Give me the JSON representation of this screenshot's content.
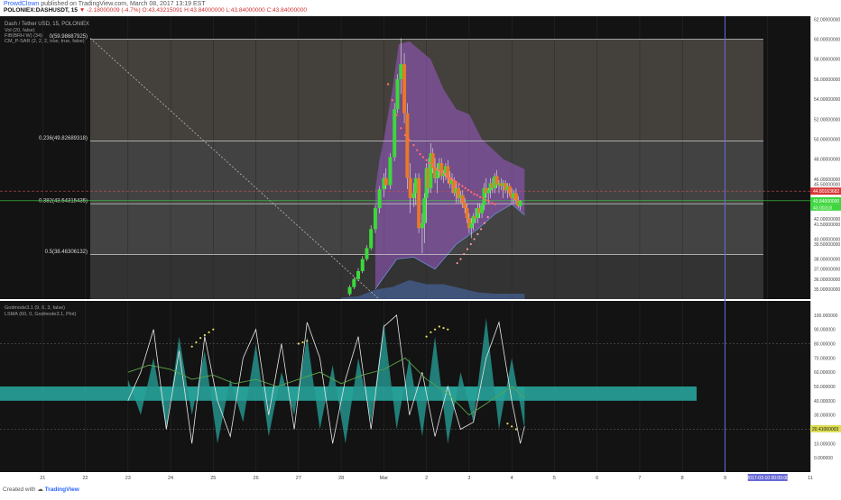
{
  "header": {
    "author": "ProwdClown",
    "published": "published on TradingView.com, March 08, 2017 13:19 EST",
    "symbol": "POLONIEX:DASHUSDT, 15",
    "change": "-2.18000009 (-4.7%)",
    "ohlc": "O:43.43215091  H:43.84000000  L:43.84000000  C:43.84000000"
  },
  "footer": {
    "created_with": "Created with",
    "brand": "TradingView"
  },
  "colors": {
    "chart_bg": "#131313",
    "candle_up": "#3cd83c",
    "candle_down": "#e8782a",
    "ichimoku_cloud": "#9b59c6",
    "sar": "#ff6b6b",
    "fib_line": "#d0d0d0",
    "price_line": "#3ed63e",
    "last_price_label": "#d93838",
    "osc_fill": "#27a39b",
    "date_axis": "#6a6ad8"
  },
  "chart_data": [
    {
      "type": "candlestick",
      "title": "Dash / Tether USD, 15, POLONIEX",
      "indicators": [
        "Vol (20, false)",
        "FIB(BRH W) (34)",
        "CM_P-SAR (2, 2, 2, true, true, false)"
      ],
      "x_ticks": [
        "21",
        "22",
        "23",
        "24",
        "25",
        "26",
        "27",
        "28",
        "Mar",
        "2",
        "3",
        "4",
        "5",
        "6",
        "7",
        "8",
        "9",
        "2017-03-10 00:00:00",
        "11"
      ],
      "y_ticks": [
        "62.00000000",
        "60.00000000",
        "58.00000000",
        "56.00000000",
        "54.00000000",
        "52.00000000",
        "50.00000000",
        "48.00000000",
        "46.00000000",
        "45.50000000",
        "44.00000000",
        "43.84000000",
        "42.00000000",
        "41.50000000",
        "40.00000000",
        "39.50000000",
        "38.00000000",
        "37.00000000",
        "36.00000000",
        "35.00000000"
      ],
      "ylim": [
        34.0,
        62.3
      ],
      "fib_levels": [
        {
          "label": "0(59.98687925)",
          "value": 59.99
        },
        {
          "label": "0.236(49.82689318)",
          "value": 49.83
        },
        {
          "label": "0.382(43.54315435)",
          "value": 43.54
        },
        {
          "label": "0.5(38.46306132)",
          "value": 38.46
        }
      ],
      "last_price": "44.80163682",
      "current_price": "43.84000000",
      "secondary_price": "43.00318",
      "current_time": "2017-03-10 00:00:00",
      "candles": [
        [
          8.2,
          34.5,
          35.4,
          34.3,
          35.2
        ],
        [
          8.3,
          35.2,
          36.2,
          35.0,
          36.0
        ],
        [
          8.4,
          36.0,
          37.1,
          35.8,
          36.8
        ],
        [
          8.5,
          36.8,
          38.3,
          36.6,
          38.0
        ],
        [
          8.6,
          38.0,
          39.4,
          37.8,
          39.1
        ],
        [
          8.7,
          39.1,
          41.4,
          38.9,
          41.0
        ],
        [
          8.8,
          41.0,
          43.4,
          40.6,
          43.1
        ],
        [
          8.9,
          43.1,
          45.3,
          42.6,
          45.0
        ],
        [
          9.0,
          45.0,
          46.6,
          44.2,
          46.1
        ],
        [
          9.05,
          46.1,
          47.1,
          45.0,
          45.4
        ],
        [
          9.15,
          45.4,
          48.6,
          45.0,
          48.2
        ],
        [
          9.25,
          48.2,
          53.6,
          47.8,
          53.0
        ],
        [
          9.32,
          53.0,
          56.5,
          52.6,
          56.0
        ],
        [
          9.4,
          56.0,
          60.1,
          54.5,
          57.5
        ],
        [
          9.48,
          57.5,
          58.6,
          51.6,
          52.6
        ],
        [
          9.55,
          52.6,
          53.6,
          45.0,
          46.1
        ],
        [
          9.62,
          46.1,
          47.6,
          42.6,
          44.1
        ],
        [
          9.7,
          44.1,
          45.6,
          43.2,
          44.6
        ],
        [
          9.75,
          44.6,
          46.6,
          43.4,
          46.1
        ],
        [
          9.82,
          46.1,
          46.6,
          40.6,
          41.1
        ],
        [
          9.9,
          41.1,
          42.6,
          38.6,
          41.6
        ],
        [
          9.95,
          41.6,
          44.6,
          39.6,
          44.1
        ],
        [
          10.0,
          44.1,
          47.6,
          41.6,
          47.1
        ],
        [
          10.05,
          47.1,
          48.1,
          44.6,
          45.1
        ],
        [
          10.1,
          45.1,
          49.6,
          44.6,
          48.6
        ],
        [
          10.15,
          48.6,
          49.1,
          46.6,
          47.1
        ],
        [
          10.2,
          47.1,
          48.1,
          45.6,
          46.1
        ],
        [
          10.25,
          46.1,
          47.6,
          44.6,
          46.9
        ],
        [
          10.3,
          46.9,
          48.1,
          46.1,
          47.6
        ],
        [
          10.35,
          47.6,
          48.1,
          45.9,
          46.3
        ],
        [
          10.4,
          46.3,
          46.9,
          45.6,
          46.6
        ],
        [
          10.45,
          46.6,
          47.6,
          45.9,
          47.3
        ],
        [
          10.5,
          47.3,
          47.9,
          45.6,
          46.1
        ],
        [
          10.55,
          46.1,
          46.8,
          45.1,
          45.5
        ],
        [
          10.6,
          45.5,
          46.6,
          44.6,
          45.9
        ],
        [
          10.65,
          45.9,
          46.2,
          44.3,
          44.6
        ],
        [
          10.7,
          44.6,
          45.6,
          43.6,
          45.1
        ],
        [
          10.75,
          45.1,
          45.6,
          43.6,
          44.1
        ],
        [
          10.8,
          44.1,
          44.8,
          43.6,
          44.4
        ],
        [
          10.85,
          44.4,
          44.9,
          43.1,
          43.6
        ],
        [
          10.9,
          43.6,
          44.1,
          42.6,
          43.1
        ],
        [
          10.95,
          43.1,
          43.6,
          41.6,
          42.1
        ],
        [
          11.0,
          42.1,
          42.6,
          40.6,
          41.1
        ],
        [
          11.05,
          41.1,
          42.1,
          40.1,
          41.6
        ],
        [
          11.1,
          41.6,
          42.6,
          40.9,
          42.3
        ],
        [
          11.15,
          42.3,
          43.1,
          41.6,
          42.1
        ],
        [
          11.2,
          42.1,
          43.6,
          41.6,
          43.1
        ],
        [
          11.25,
          43.1,
          43.6,
          42.1,
          42.6
        ],
        [
          11.3,
          42.6,
          43.6,
          42.1,
          43.4
        ],
        [
          11.35,
          43.4,
          45.6,
          42.9,
          45.1
        ],
        [
          11.4,
          45.1,
          46.1,
          44.1,
          44.6
        ],
        [
          11.45,
          44.6,
          45.1,
          43.6,
          44.9
        ],
        [
          11.5,
          44.9,
          46.1,
          44.1,
          45.6
        ],
        [
          11.55,
          45.6,
          46.1,
          44.6,
          45.1
        ],
        [
          11.6,
          45.1,
          46.6,
          44.6,
          46.3
        ],
        [
          11.65,
          46.3,
          46.9,
          45.1,
          45.4
        ],
        [
          11.7,
          45.4,
          45.9,
          44.6,
          45.6
        ],
        [
          11.75,
          45.6,
          46.1,
          44.9,
          45.3
        ],
        [
          11.8,
          45.3,
          45.9,
          44.1,
          45.6
        ],
        [
          11.85,
          45.6,
          45.9,
          44.6,
          44.9
        ],
        [
          11.9,
          44.9,
          45.6,
          44.1,
          45.3
        ],
        [
          11.95,
          45.3,
          45.6,
          44.3,
          44.6
        ],
        [
          12.0,
          44.6,
          45.1,
          43.6,
          44.1
        ],
        [
          12.05,
          44.1,
          44.9,
          43.6,
          44.6
        ],
        [
          12.1,
          44.6,
          45.1,
          43.6,
          43.9
        ],
        [
          12.15,
          43.9,
          44.3,
          43.1,
          43.3
        ],
        [
          12.2,
          43.3,
          43.9,
          42.9,
          43.84
        ]
      ],
      "sar_points": [
        [
          9.1,
          55.5
        ],
        [
          9.2,
          53.9
        ],
        [
          9.3,
          52.4
        ],
        [
          9.4,
          51.1
        ],
        [
          9.5,
          50.4
        ],
        [
          9.6,
          49.9
        ],
        [
          9.7,
          49.4
        ],
        [
          9.78,
          48.9
        ],
        [
          9.85,
          48.5
        ],
        [
          9.92,
          48.2
        ],
        [
          10.0,
          47.9
        ],
        [
          10.07,
          47.6
        ],
        [
          10.14,
          47.4
        ],
        [
          10.21,
          47.1
        ],
        [
          10.28,
          46.9
        ],
        [
          10.35,
          46.7
        ],
        [
          10.42,
          46.5
        ],
        [
          10.49,
          46.3
        ],
        [
          10.56,
          46.1
        ],
        [
          10.63,
          45.9
        ],
        [
          10.7,
          45.7
        ],
        [
          10.77,
          45.5
        ],
        [
          10.84,
          45.3
        ],
        [
          10.91,
          45.1
        ],
        [
          10.98,
          44.9
        ],
        [
          11.05,
          44.7
        ],
        [
          11.12,
          44.5
        ],
        [
          11.19,
          44.4
        ],
        [
          11.26,
          44.2
        ],
        [
          11.33,
          44.1
        ],
        [
          11.4,
          43.9
        ],
        [
          11.47,
          43.8
        ],
        [
          11.54,
          43.6
        ],
        [
          11.61,
          43.5
        ]
      ],
      "sar_low_points": [
        [
          10.72,
          37.6
        ],
        [
          10.8,
          38.0
        ],
        [
          10.88,
          38.5
        ],
        [
          10.96,
          39.0
        ],
        [
          11.04,
          39.5
        ],
        [
          11.12,
          40.0
        ],
        [
          11.2,
          40.5
        ],
        [
          11.28,
          41.0
        ],
        [
          11.36,
          41.6
        ],
        [
          11.44,
          42.2
        ]
      ],
      "cloud_upper": [
        [
          8.8,
          45.0
        ],
        [
          8.9,
          48.0
        ],
        [
          9.0,
          50.0
        ],
        [
          9.2,
          55.0
        ],
        [
          9.35,
          59.5
        ],
        [
          9.6,
          59.8
        ],
        [
          10.1,
          58.0
        ],
        [
          10.4,
          55.0
        ],
        [
          10.7,
          53.0
        ],
        [
          11.0,
          52.5
        ],
        [
          11.3,
          50.0
        ],
        [
          11.8,
          48.0
        ],
        [
          12.3,
          47.0
        ]
      ],
      "cloud_lower": [
        [
          8.8,
          35.0
        ],
        [
          9.0,
          36.2
        ],
        [
          9.3,
          38.0
        ],
        [
          9.7,
          38.2
        ],
        [
          10.2,
          37.0
        ],
        [
          10.7,
          39.5
        ],
        [
          11.2,
          41.0
        ],
        [
          11.6,
          42.5
        ],
        [
          12.0,
          43.5
        ],
        [
          12.3,
          42.4
        ]
      ],
      "volume": [
        [
          8.0,
          0.05
        ],
        [
          8.4,
          0.1
        ],
        [
          8.8,
          0.35
        ],
        [
          9.2,
          0.45
        ],
        [
          9.6,
          0.7
        ],
        [
          10.0,
          0.55
        ],
        [
          10.4,
          0.55
        ],
        [
          10.8,
          0.4
        ],
        [
          11.2,
          0.25
        ],
        [
          11.6,
          0.2
        ],
        [
          12.3,
          0.2
        ]
      ]
    },
    {
      "type": "area",
      "title": "Godmode3.1 (9, 6, 3, false)",
      "subtitle": "LSMA (60, 0, Godmode3.1, Plot)",
      "y_ticks": [
        "100.000000",
        "90.000000",
        "80.000000",
        "70.000000",
        "60.000000",
        "50.000000",
        "40.000000",
        "30.000000",
        "20.000000",
        "10.000000",
        "0.000000"
      ],
      "ylim": [
        -10,
        110
      ],
      "histogram": [
        [
          3.0,
          55
        ],
        [
          3.3,
          30
        ],
        [
          3.6,
          70
        ],
        [
          3.9,
          20
        ],
        [
          4.2,
          85
        ],
        [
          4.5,
          30
        ],
        [
          4.8,
          75
        ],
        [
          5.1,
          10
        ],
        [
          5.4,
          55
        ],
        [
          5.7,
          25
        ],
        [
          6.0,
          80
        ],
        [
          6.3,
          15
        ],
        [
          6.6,
          60
        ],
        [
          6.9,
          30
        ],
        [
          7.2,
          85
        ],
        [
          7.5,
          20
        ],
        [
          7.8,
          65
        ],
        [
          8.1,
          10
        ],
        [
          8.4,
          70
        ],
        [
          8.7,
          25
        ],
        [
          9.0,
          95
        ],
        [
          9.3,
          20
        ],
        [
          9.6,
          70
        ],
        [
          9.9,
          15
        ],
        [
          10.2,
          85
        ],
        [
          10.5,
          10
        ],
        [
          10.8,
          60
        ],
        [
          11.1,
          25
        ],
        [
          11.4,
          98
        ],
        [
          11.7,
          20
        ],
        [
          12.0,
          70
        ],
        [
          12.3,
          20
        ]
      ],
      "fast_line": [
        [
          3.0,
          40
        ],
        [
          3.3,
          60
        ],
        [
          3.6,
          90
        ],
        [
          3.9,
          20
        ],
        [
          4.2,
          75
        ],
        [
          4.5,
          10
        ],
        [
          4.8,
          85
        ],
        [
          5.1,
          40
        ],
        [
          5.4,
          15
        ],
        [
          5.7,
          70
        ],
        [
          6.0,
          90
        ],
        [
          6.3,
          30
        ],
        [
          6.6,
          80
        ],
        [
          6.9,
          20
        ],
        [
          7.2,
          95
        ],
        [
          7.5,
          70
        ],
        [
          7.8,
          10
        ],
        [
          8.1,
          55
        ],
        [
          8.4,
          85
        ],
        [
          8.7,
          20
        ],
        [
          9.0,
          92
        ],
        [
          9.3,
          100
        ],
        [
          9.6,
          30
        ],
        [
          9.9,
          60
        ],
        [
          10.2,
          15
        ],
        [
          10.5,
          50
        ],
        [
          10.8,
          20
        ],
        [
          11.1,
          25
        ],
        [
          11.4,
          70
        ],
        [
          11.7,
          95
        ],
        [
          12.0,
          40
        ],
        [
          12.2,
          10
        ],
        [
          12.3,
          22
        ]
      ],
      "slow_line": [
        [
          3.0,
          60
        ],
        [
          3.5,
          65
        ],
        [
          4.0,
          62
        ],
        [
          4.5,
          55
        ],
        [
          5.0,
          58
        ],
        [
          5.5,
          52
        ],
        [
          6.0,
          55
        ],
        [
          6.5,
          50
        ],
        [
          7.0,
          55
        ],
        [
          7.5,
          60
        ],
        [
          8.0,
          52
        ],
        [
          8.5,
          58
        ],
        [
          9.0,
          62
        ],
        [
          9.5,
          70
        ],
        [
          10.0,
          55
        ],
        [
          10.5,
          45
        ],
        [
          11.0,
          30
        ],
        [
          11.5,
          40
        ],
        [
          12.0,
          50
        ],
        [
          12.3,
          42
        ]
      ],
      "signal_dots": [
        [
          4.5,
          78
        ],
        [
          4.6,
          81
        ],
        [
          4.7,
          84
        ],
        [
          4.8,
          86
        ],
        [
          4.9,
          88
        ],
        [
          5.0,
          90
        ],
        [
          7.0,
          80
        ],
        [
          7.1,
          81
        ],
        [
          7.2,
          82
        ],
        [
          10.0,
          85
        ],
        [
          10.1,
          88
        ],
        [
          10.2,
          90
        ],
        [
          10.3,
          92
        ],
        [
          10.4,
          91
        ],
        [
          10.5,
          90
        ],
        [
          11.9,
          24
        ],
        [
          12.0,
          22
        ],
        [
          12.1,
          20
        ]
      ],
      "last_value": "20.41060003"
    }
  ]
}
